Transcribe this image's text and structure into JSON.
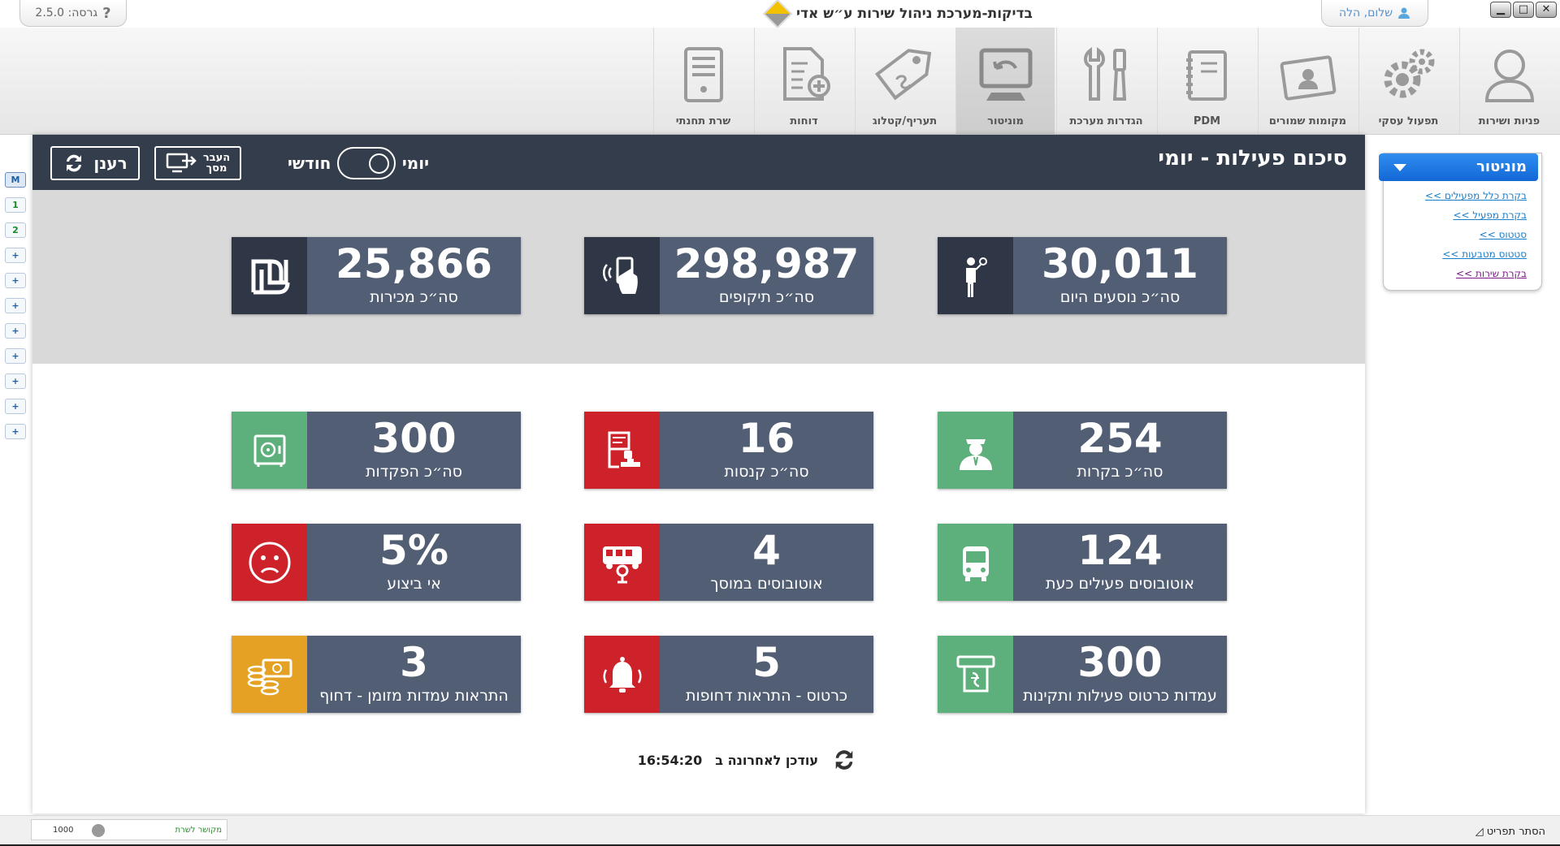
{
  "window": {
    "title": "בדיקות-מערכת ניהול שירות ע״ש אדי",
    "version": "גרסה: 2.5.0",
    "help": "?",
    "user": "שלום, הלה",
    "minimize": "▁",
    "restore": "□",
    "close": "✕"
  },
  "nav": [
    {
      "label": "פניות ושירות",
      "icon": "user-icon"
    },
    {
      "label": "תפעול עסקי",
      "icon": "gears-icon"
    },
    {
      "label": "מקומות שמורים",
      "icon": "id-card-icon"
    },
    {
      "label": "PDM",
      "icon": "notebook-icon"
    },
    {
      "label": "הגדרות מערכת",
      "icon": "tools-icon"
    },
    {
      "label": "מוניטור",
      "icon": "monitor-icon",
      "active": true
    },
    {
      "label": "תעריף/קטלוג",
      "icon": "price-tag-icon"
    },
    {
      "label": "דוחות",
      "icon": "report-icon"
    },
    {
      "label": "שרת תחנתי",
      "icon": "server-icon"
    }
  ],
  "minicol": [
    "M",
    "1",
    "2",
    "+",
    "+",
    "+",
    "+",
    "+",
    "+",
    "+",
    "+"
  ],
  "panel": {
    "title": "סיכום פעילות - יומי",
    "toggle_daily": "יומי",
    "toggle_monthly": "חודשי",
    "screen_line1": "העבר",
    "screen_line2": "מסך",
    "refresh": "רענן"
  },
  "cards_top": [
    {
      "value": "30,011",
      "label": "סה״כ נוסעים היום",
      "icon": "passenger-icon",
      "color": "#2f3746"
    },
    {
      "value": "298,987",
      "label": "סה״כ תיקופים",
      "icon": "contactless-icon",
      "color": "#2f3746"
    },
    {
      "value": "25,866",
      "label": "סה״כ מכירות",
      "icon": "shekel-icon",
      "color": "#2f3746"
    }
  ],
  "cards": [
    {
      "value": "254",
      "label": "סה״כ בקרות",
      "icon": "inspector-icon",
      "color": "#5daf7b"
    },
    {
      "value": "16",
      "label": "סה״כ קנסות",
      "icon": "fine-stamp-icon",
      "color": "#cd2229"
    },
    {
      "value": "300",
      "label": "סה״כ הפקדות",
      "icon": "safe-icon",
      "color": "#5daf7b"
    },
    {
      "value": "124",
      "label": "אוטובוסים פעילים כעת",
      "icon": "bus-icon",
      "color": "#5daf7b"
    },
    {
      "value": "4",
      "label": "אוטובוסים במוסך",
      "icon": "bus-garage-icon",
      "color": "#cd2229"
    },
    {
      "value": "5%",
      "label": "אי ביצוע",
      "icon": "sad-face-icon",
      "color": "#cd2229"
    },
    {
      "value": "300",
      "label": "עמדות כרטוס פעילות ותקינות",
      "icon": "ticket-machine-icon",
      "color": "#5daf7b"
    },
    {
      "value": "5",
      "label": "כרטוס - התראות דחופות",
      "icon": "alarm-bell-icon",
      "color": "#cd2229"
    },
    {
      "value": "3",
      "label": "התראות עמדות מזומן - דחוף",
      "icon": "cash-icon",
      "color": "#e4a124"
    }
  ],
  "updated": {
    "text": "עודכן לאחרונה ב",
    "time": "16:54:20"
  },
  "sidebar": {
    "title": "מוניטור",
    "links": [
      {
        "label": "בקרת כלל מפעילים >>",
        "visited": false
      },
      {
        "label": "בקרת מפעיל >>",
        "visited": false
      },
      {
        "label": "סטטוס >>",
        "visited": false
      },
      {
        "label": "סטטוס מטבעות >>",
        "visited": false
      },
      {
        "label": "בקרת שירות >>",
        "visited": true
      }
    ]
  },
  "status": {
    "value": "1000",
    "connection": "מקושר לשרת",
    "hide_menu": "הסתר תפריט"
  }
}
